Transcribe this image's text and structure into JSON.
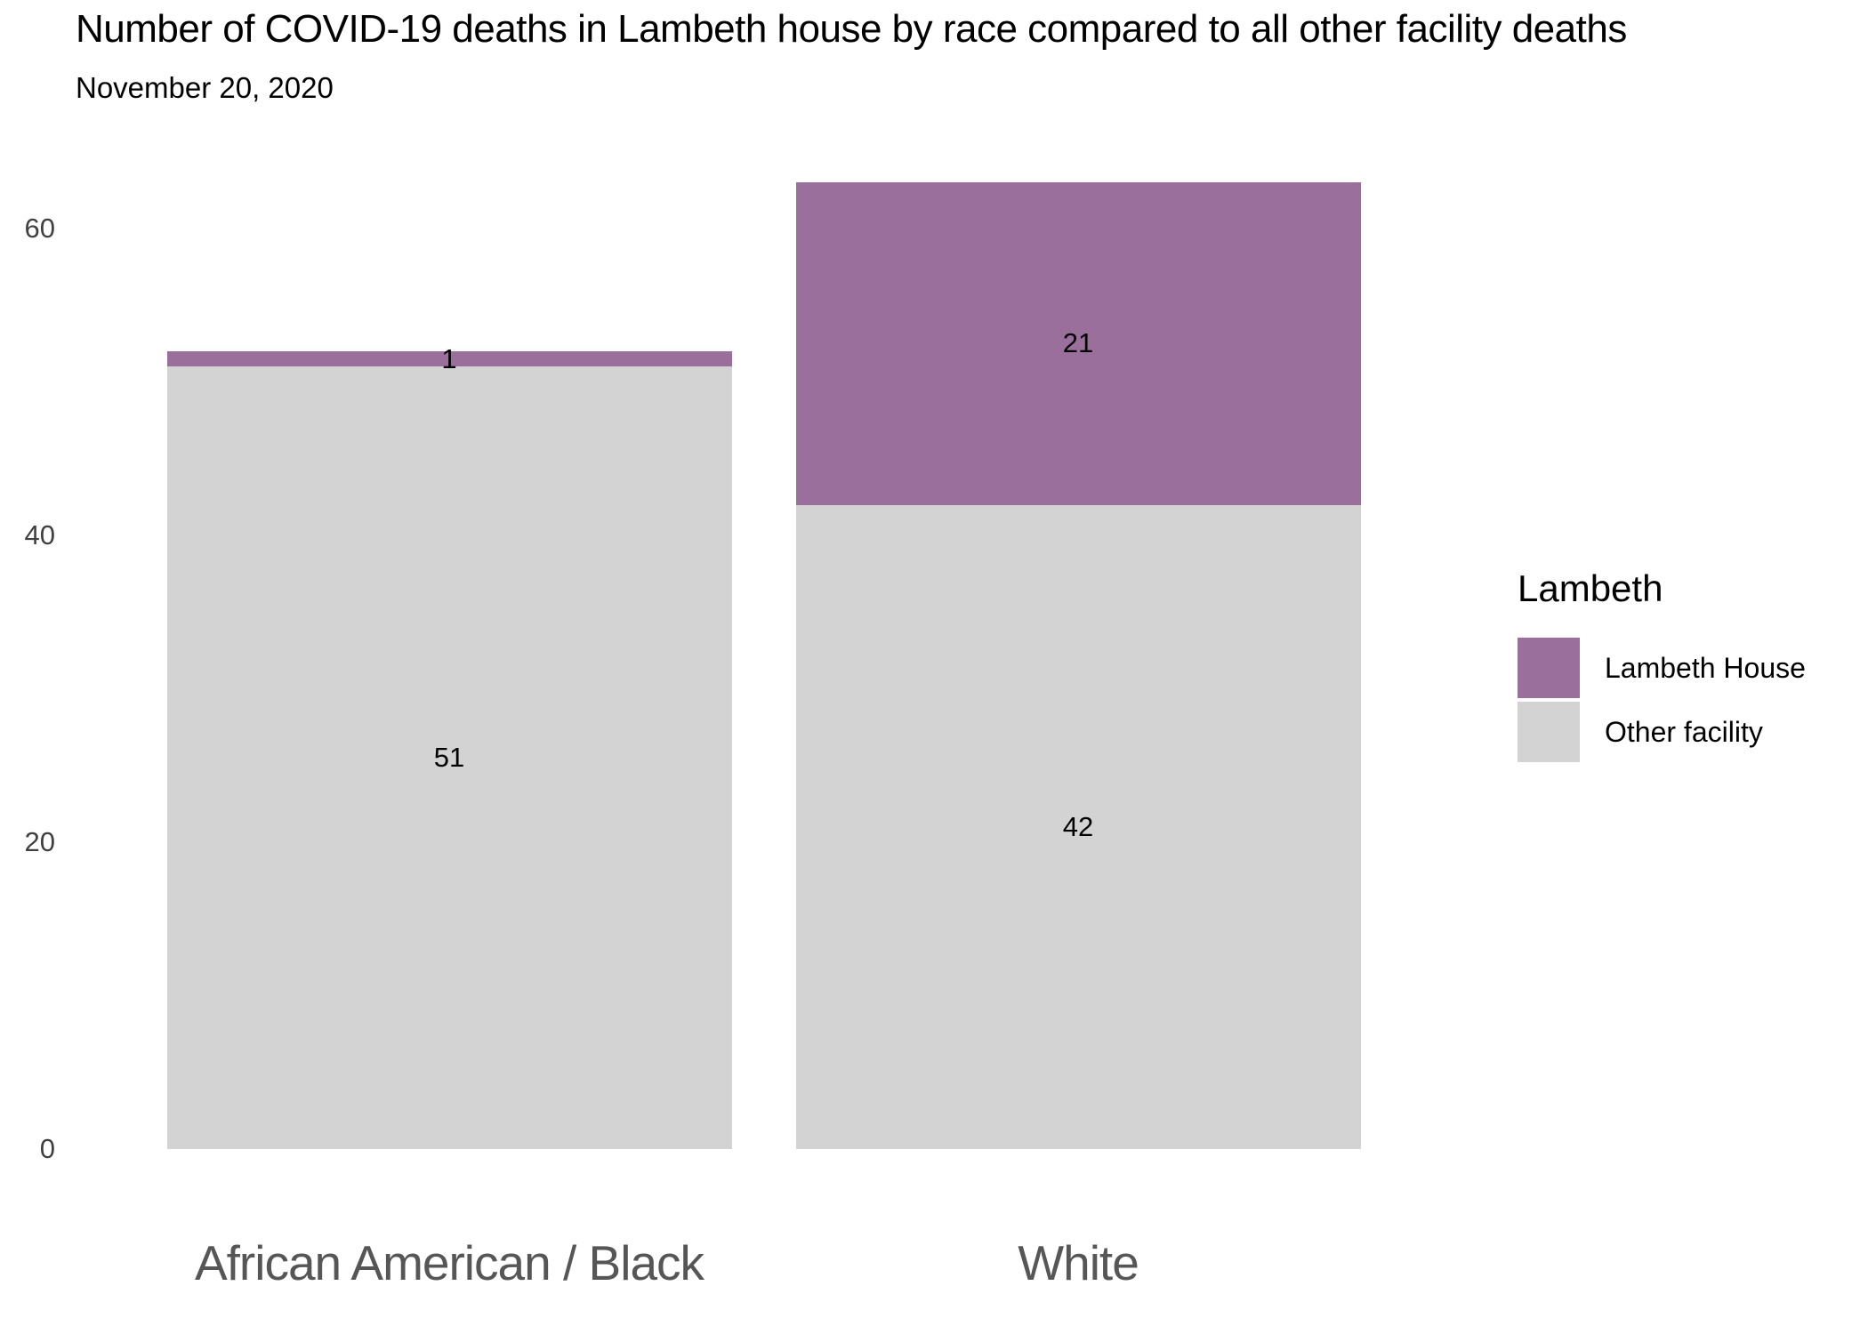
{
  "title": "Number of COVID-19 deaths in Lambeth house by race compared to all other facility deaths",
  "subtitle": "November 20, 2020",
  "chart_data": {
    "type": "bar",
    "stacked": true,
    "orientation": "vertical",
    "categories": [
      "African American / Black",
      "White"
    ],
    "series": [
      {
        "name": "Lambeth House",
        "color": "#9a6f9b",
        "values": [
          1,
          21
        ]
      },
      {
        "name": "Other facility",
        "color": "#d3d3d3",
        "values": [
          51,
          42
        ]
      }
    ],
    "stack_totals": [
      52,
      63
    ],
    "data_labels": {
      "shown": true,
      "values": [
        [
          1,
          21
        ],
        [
          51,
          42
        ]
      ]
    },
    "yticks": [
      0,
      20,
      40,
      60
    ],
    "ylim": [
      0,
      63
    ],
    "xlabel": "",
    "ylabel": "",
    "grid": false,
    "legend": {
      "title": "Lambeth",
      "position": "right",
      "items": [
        {
          "label": "Lambeth House",
          "color": "#9a6f9b"
        },
        {
          "label": "Other facility",
          "color": "#d3d3d3"
        }
      ]
    }
  },
  "style_colors": {
    "background": "#ffffff",
    "axis_tick_text": "#404040",
    "category_text": "#565656",
    "data_label_text": "#000000"
  }
}
